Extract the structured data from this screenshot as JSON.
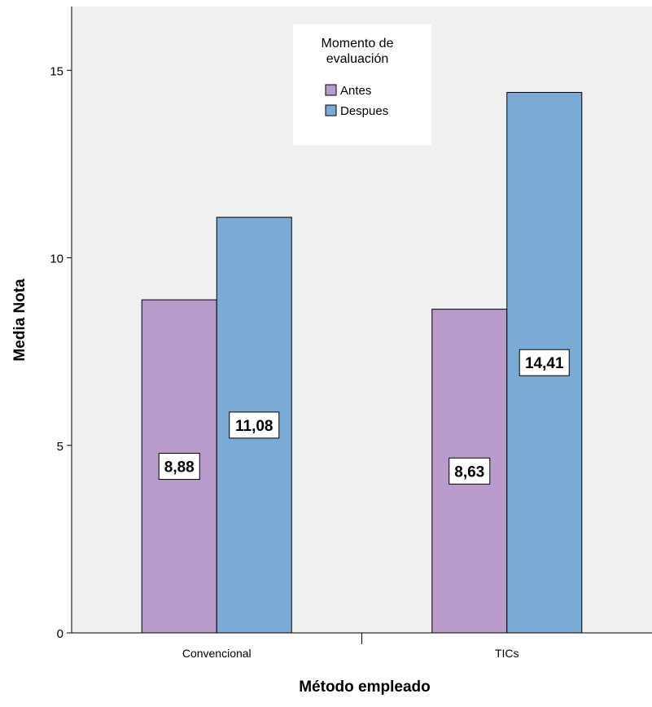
{
  "chart_data": {
    "type": "bar",
    "title": "",
    "xlabel": "Método empleado",
    "ylabel": "Media Nota",
    "categories": [
      "Convencional",
      "TICs"
    ],
    "series": [
      {
        "name": "Antes",
        "values": [
          8.88,
          8.63
        ],
        "labels": [
          "8,88",
          "8,63"
        ],
        "color": "#b89bcb"
      },
      {
        "name": "Despues",
        "values": [
          11.08,
          14.41
        ],
        "labels": [
          "11,08",
          "14,41"
        ],
        "color": "#7aaad6"
      }
    ],
    "ylim": [
      0,
      16.7
    ],
    "yticks": [
      0,
      5,
      10,
      15
    ],
    "legend": {
      "title_line1": "Momento de",
      "title_line2": "evaluación",
      "placement": "top-center"
    },
    "plot_background": "#f0f0f0",
    "grid": false
  }
}
